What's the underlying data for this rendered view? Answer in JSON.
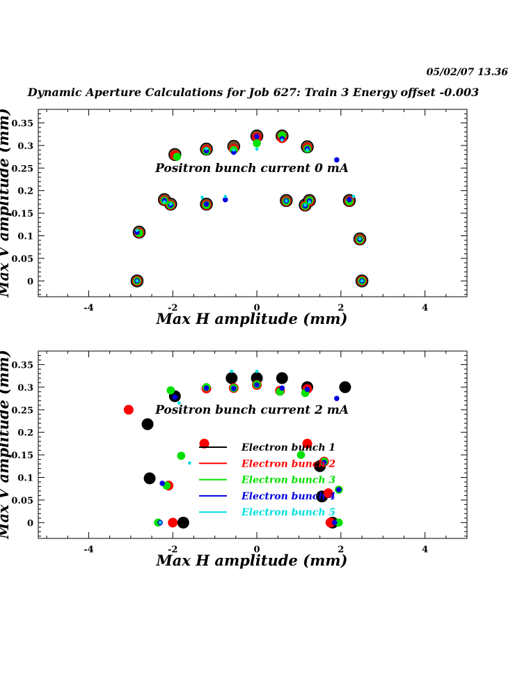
{
  "timestamp": "05/02/07  13.36",
  "page_title": "Dynamic Aperture Calculations for Job 627:  Train 3   Energy offset  -0.003",
  "chart_data": [
    {
      "type": "scatter",
      "title": "Positron bunch current  0 mA",
      "xlabel": "Max H amplitude (mm)",
      "ylabel": "Max V amplitude (mm)",
      "xlim": [
        -5.2,
        5.0
      ],
      "ylim": [
        -0.035,
        0.38
      ],
      "x_ticks": [
        "-4",
        "-2",
        "0",
        "2",
        "4"
      ],
      "y_ticks": [
        "0",
        "0.05",
        "0.1",
        "0.15",
        "0.2",
        "0.25",
        "0.3",
        "0.35"
      ],
      "series": [
        {
          "name": "Electron bunch 1",
          "color": "#000000",
          "points": [
            [
              -1.95,
              0.28
            ],
            [
              -1.2,
              0.292
            ],
            [
              -0.55,
              0.298
            ],
            [
              0,
              0.321
            ],
            [
              0.6,
              0.321
            ],
            [
              1.2,
              0.297
            ],
            [
              -2.2,
              0.18
            ],
            [
              -2.05,
              0.17
            ],
            [
              -1.2,
              0.17
            ],
            [
              0.7,
              0.178
            ],
            [
              1.15,
              0.168
            ],
            [
              1.25,
              0.178
            ],
            [
              2.2,
              0.178
            ],
            [
              -2.8,
              0.108
            ],
            [
              2.45,
              0.093
            ],
            [
              -2.85,
              0.0
            ],
            [
              2.5,
              0.0
            ]
          ]
        },
        {
          "name": "Electron bunch 2",
          "color": "#ff0000",
          "points": [
            [
              -1.95,
              0.278
            ],
            [
              -1.2,
              0.29
            ],
            [
              -0.55,
              0.292
            ],
            [
              0,
              0.318
            ],
            [
              0.6,
              0.316
            ],
            [
              1.2,
              0.295
            ],
            [
              -2.2,
              0.178
            ],
            [
              -2.05,
              0.168
            ],
            [
              -1.2,
              0.168
            ],
            [
              0.7,
              0.176
            ],
            [
              1.15,
              0.166
            ],
            [
              1.25,
              0.176
            ],
            [
              2.2,
              0.176
            ],
            [
              -2.8,
              0.106
            ],
            [
              2.45,
              0.091
            ],
            [
              -2.85,
              0.0
            ],
            [
              2.5,
              0.0
            ]
          ]
        },
        {
          "name": "Electron bunch 3",
          "color": "#00e000",
          "points": [
            [
              -1.9,
              0.275
            ],
            [
              -1.2,
              0.288
            ],
            [
              -0.55,
              0.29
            ],
            [
              0,
              0.305
            ],
            [
              0.6,
              0.322
            ],
            [
              1.2,
              0.293
            ],
            [
              -2.2,
              0.178
            ],
            [
              -2.05,
              0.168
            ],
            [
              -1.2,
              0.168
            ],
            [
              0.7,
              0.176
            ],
            [
              1.15,
              0.166
            ],
            [
              1.25,
              0.178
            ],
            [
              2.2,
              0.176
            ],
            [
              -2.8,
              0.106
            ],
            [
              2.45,
              0.091
            ],
            [
              -2.85,
              0.0
            ],
            [
              2.5,
              0.0
            ]
          ]
        },
        {
          "name": "Electron bunch 4",
          "color": "#0000e0",
          "points": [
            [
              -1.2,
              0.288
            ],
            [
              -0.55,
              0.285
            ],
            [
              0,
              0.32
            ],
            [
              0.6,
              0.315
            ],
            [
              1.2,
              0.293
            ],
            [
              1.9,
              0.268
            ],
            [
              -2.2,
              0.178
            ],
            [
              -2.05,
              0.168
            ],
            [
              -1.2,
              0.17
            ],
            [
              -0.75,
              0.18
            ],
            [
              0.7,
              0.177
            ],
            [
              1.15,
              0.166
            ],
            [
              1.25,
              0.177
            ],
            [
              2.2,
              0.18
            ],
            [
              -2.85,
              0.108
            ],
            [
              2.45,
              0.092
            ],
            [
              -2.85,
              0.0
            ],
            [
              2.5,
              0.0
            ]
          ]
        },
        {
          "name": "Electron bunch 5",
          "color": "#00e0e0",
          "points": [
            [
              -1.2,
              0.293
            ],
            [
              -0.55,
              0.29
            ],
            [
              0,
              0.292
            ],
            [
              0.6,
              0.312
            ],
            [
              1.2,
              0.29
            ],
            [
              -2.2,
              0.175
            ],
            [
              -2.05,
              0.17
            ],
            [
              -1.3,
              0.185
            ],
            [
              -0.75,
              0.187
            ],
            [
              0.7,
              0.177
            ],
            [
              1.15,
              0.168
            ],
            [
              1.25,
              0.175
            ],
            [
              2.3,
              0.187
            ],
            [
              -2.85,
              0.112
            ],
            [
              2.45,
              0.093
            ],
            [
              -2.85,
              0.0
            ],
            [
              2.5,
              0.0
            ]
          ]
        }
      ]
    },
    {
      "type": "scatter",
      "title": "Positron bunch current  2 mA",
      "xlabel": "Max H amplitude (mm)",
      "ylabel": "Max V amplitude (mm)",
      "xlim": [
        -5.2,
        5.0
      ],
      "ylim": [
        -0.035,
        0.38
      ],
      "x_ticks": [
        "-4",
        "-2",
        "0",
        "2",
        "4"
      ],
      "y_ticks": [
        "0",
        "0.05",
        "0.1",
        "0.15",
        "0.2",
        "0.25",
        "0.3",
        "0.35"
      ],
      "legend": {
        "position": "center",
        "items": [
          {
            "label": "Electron bunch 1",
            "color": "#000000",
            "text_color": "#000000"
          },
          {
            "label": "Electron bunch 2",
            "color": "#ff0000",
            "text_color": "#ff0000"
          },
          {
            "label": "Electron bunch 3",
            "color": "#00e000",
            "text_color": "#00e000"
          },
          {
            "label": "Electron bunch 4",
            "color": "#0000e0",
            "text_color": "#0000e0"
          },
          {
            "label": "Electron bunch 5",
            "color": "#00e0e0",
            "text_color": "#00e0e0"
          }
        ]
      },
      "series": [
        {
          "name": "Electron bunch 1",
          "color": "#000000",
          "points": [
            [
              -1.95,
              0.28
            ],
            [
              -0.6,
              0.32
            ],
            [
              0,
              0.32
            ],
            [
              0.6,
              0.32
            ],
            [
              1.2,
              0.3
            ],
            [
              2.1,
              0.3
            ],
            [
              -2.6,
              0.218
            ],
            [
              -2.55,
              0.098
            ],
            [
              1.5,
              0.125
            ],
            [
              1.55,
              0.058
            ],
            [
              -1.75,
              0.0
            ],
            [
              1.8,
              0.0
            ]
          ]
        },
        {
          "name": "Electron bunch 2",
          "color": "#ff0000",
          "points": [
            [
              -3.05,
              0.25
            ],
            [
              -1.2,
              0.297
            ],
            [
              -0.55,
              0.298
            ],
            [
              0,
              0.305
            ],
            [
              0.55,
              0.292
            ],
            [
              1.2,
              0.296
            ],
            [
              -1.25,
              0.175
            ],
            [
              1.2,
              0.175
            ],
            [
              1.6,
              0.135
            ],
            [
              1.7,
              0.065
            ],
            [
              -2.1,
              0.082
            ],
            [
              -2.0,
              0.0
            ],
            [
              1.75,
              0.0
            ]
          ]
        },
        {
          "name": "Electron bunch 3",
          "color": "#00e000",
          "points": [
            [
              -2.05,
              0.293
            ],
            [
              -1.2,
              0.3
            ],
            [
              -0.55,
              0.298
            ],
            [
              0,
              0.306
            ],
            [
              0.55,
              0.29
            ],
            [
              1.15,
              0.287
            ],
            [
              -1.8,
              0.148
            ],
            [
              1.05,
              0.15
            ],
            [
              1.6,
              0.135
            ],
            [
              1.95,
              0.073
            ],
            [
              -2.15,
              0.082
            ],
            [
              -2.35,
              0.0
            ],
            [
              1.95,
              0.0
            ]
          ]
        },
        {
          "name": "Electron bunch 4",
          "color": "#0000e0",
          "points": [
            [
              -1.95,
              0.278
            ],
            [
              -1.2,
              0.298
            ],
            [
              -0.55,
              0.297
            ],
            [
              0,
              0.305
            ],
            [
              0.6,
              0.298
            ],
            [
              1.2,
              0.295
            ],
            [
              1.9,
              0.275
            ],
            [
              1.6,
              0.133
            ],
            [
              1.95,
              0.073
            ],
            [
              -2.25,
              0.087
            ],
            [
              -2.3,
              0.0
            ],
            [
              1.85,
              0.0
            ]
          ]
        },
        {
          "name": "Electron bunch 5",
          "color": "#00e0e0",
          "points": [
            [
              -0.6,
              0.335
            ],
            [
              0,
              0.335
            ],
            [
              -1.85,
              0.265
            ],
            [
              -1.6,
              0.132
            ],
            [
              -2.3,
              0.0
            ]
          ]
        }
      ]
    }
  ]
}
